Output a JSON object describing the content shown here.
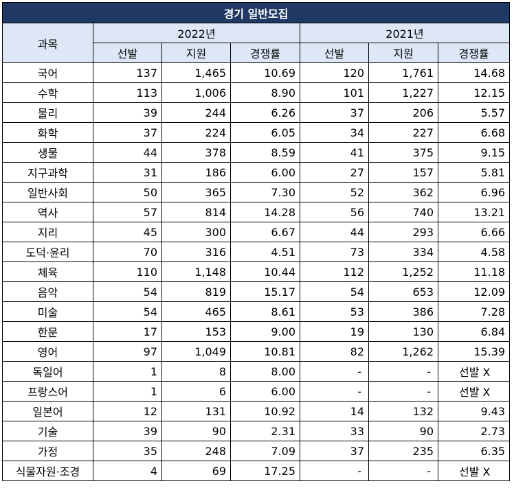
{
  "title": "경기 일반모집",
  "header": {
    "subject": "과목",
    "years": [
      "2022년",
      "2021년"
    ],
    "cols": [
      "선발",
      "지원",
      "경쟁률"
    ]
  },
  "rows": [
    {
      "subject": "국어",
      "y2022": [
        "137",
        "1,465",
        "10.69"
      ],
      "y2021": [
        "120",
        "1,761",
        "14.68"
      ]
    },
    {
      "subject": "수학",
      "y2022": [
        "113",
        "1,006",
        "8.90"
      ],
      "y2021": [
        "101",
        "1,227",
        "12.15"
      ]
    },
    {
      "subject": "물리",
      "y2022": [
        "39",
        "244",
        "6.26"
      ],
      "y2021": [
        "37",
        "206",
        "5.57"
      ]
    },
    {
      "subject": "화학",
      "y2022": [
        "37",
        "224",
        "6.05"
      ],
      "y2021": [
        "34",
        "227",
        "6.68"
      ]
    },
    {
      "subject": "생물",
      "y2022": [
        "44",
        "378",
        "8.59"
      ],
      "y2021": [
        "41",
        "375",
        "9.15"
      ]
    },
    {
      "subject": "지구과학",
      "y2022": [
        "31",
        "186",
        "6.00"
      ],
      "y2021": [
        "27",
        "157",
        "5.81"
      ]
    },
    {
      "subject": "일반사회",
      "y2022": [
        "50",
        "365",
        "7.30"
      ],
      "y2021": [
        "52",
        "362",
        "6.96"
      ]
    },
    {
      "subject": "역사",
      "y2022": [
        "57",
        "814",
        "14.28"
      ],
      "y2021": [
        "56",
        "740",
        "13.21"
      ]
    },
    {
      "subject": "지리",
      "y2022": [
        "45",
        "300",
        "6.67"
      ],
      "y2021": [
        "44",
        "293",
        "6.66"
      ]
    },
    {
      "subject": "도덕·윤리",
      "y2022": [
        "70",
        "316",
        "4.51"
      ],
      "y2021": [
        "73",
        "334",
        "4.58"
      ]
    },
    {
      "subject": "체육",
      "y2022": [
        "110",
        "1,148",
        "10.44"
      ],
      "y2021": [
        "112",
        "1,252",
        "11.18"
      ]
    },
    {
      "subject": "음악",
      "y2022": [
        "54",
        "819",
        "15.17"
      ],
      "y2021": [
        "54",
        "653",
        "12.09"
      ]
    },
    {
      "subject": "미술",
      "y2022": [
        "54",
        "465",
        "8.61"
      ],
      "y2021": [
        "53",
        "386",
        "7.28"
      ]
    },
    {
      "subject": "한문",
      "y2022": [
        "17",
        "153",
        "9.00"
      ],
      "y2021": [
        "19",
        "130",
        "6.84"
      ]
    },
    {
      "subject": "영어",
      "y2022": [
        "97",
        "1,049",
        "10.81"
      ],
      "y2021": [
        "82",
        "1,262",
        "15.39"
      ]
    },
    {
      "subject": "독일어",
      "y2022": [
        "1",
        "8",
        "8.00"
      ],
      "y2021": [
        "-",
        "-",
        "선발 X"
      ]
    },
    {
      "subject": "프랑스어",
      "y2022": [
        "1",
        "6",
        "6.00"
      ],
      "y2021": [
        "-",
        "-",
        "선발 X"
      ]
    },
    {
      "subject": "일본어",
      "y2022": [
        "12",
        "131",
        "10.92"
      ],
      "y2021": [
        "14",
        "132",
        "9.43"
      ]
    },
    {
      "subject": "기술",
      "y2022": [
        "39",
        "90",
        "2.31"
      ],
      "y2021": [
        "33",
        "90",
        "2.73"
      ]
    },
    {
      "subject": "가정",
      "y2022": [
        "35",
        "248",
        "7.09"
      ],
      "y2021": [
        "37",
        "235",
        "6.35"
      ]
    },
    {
      "subject": "식물자원·조경",
      "y2022": [
        "4",
        "69",
        "17.25"
      ],
      "y2021": [
        "-",
        "-",
        "선발 X"
      ]
    }
  ]
}
